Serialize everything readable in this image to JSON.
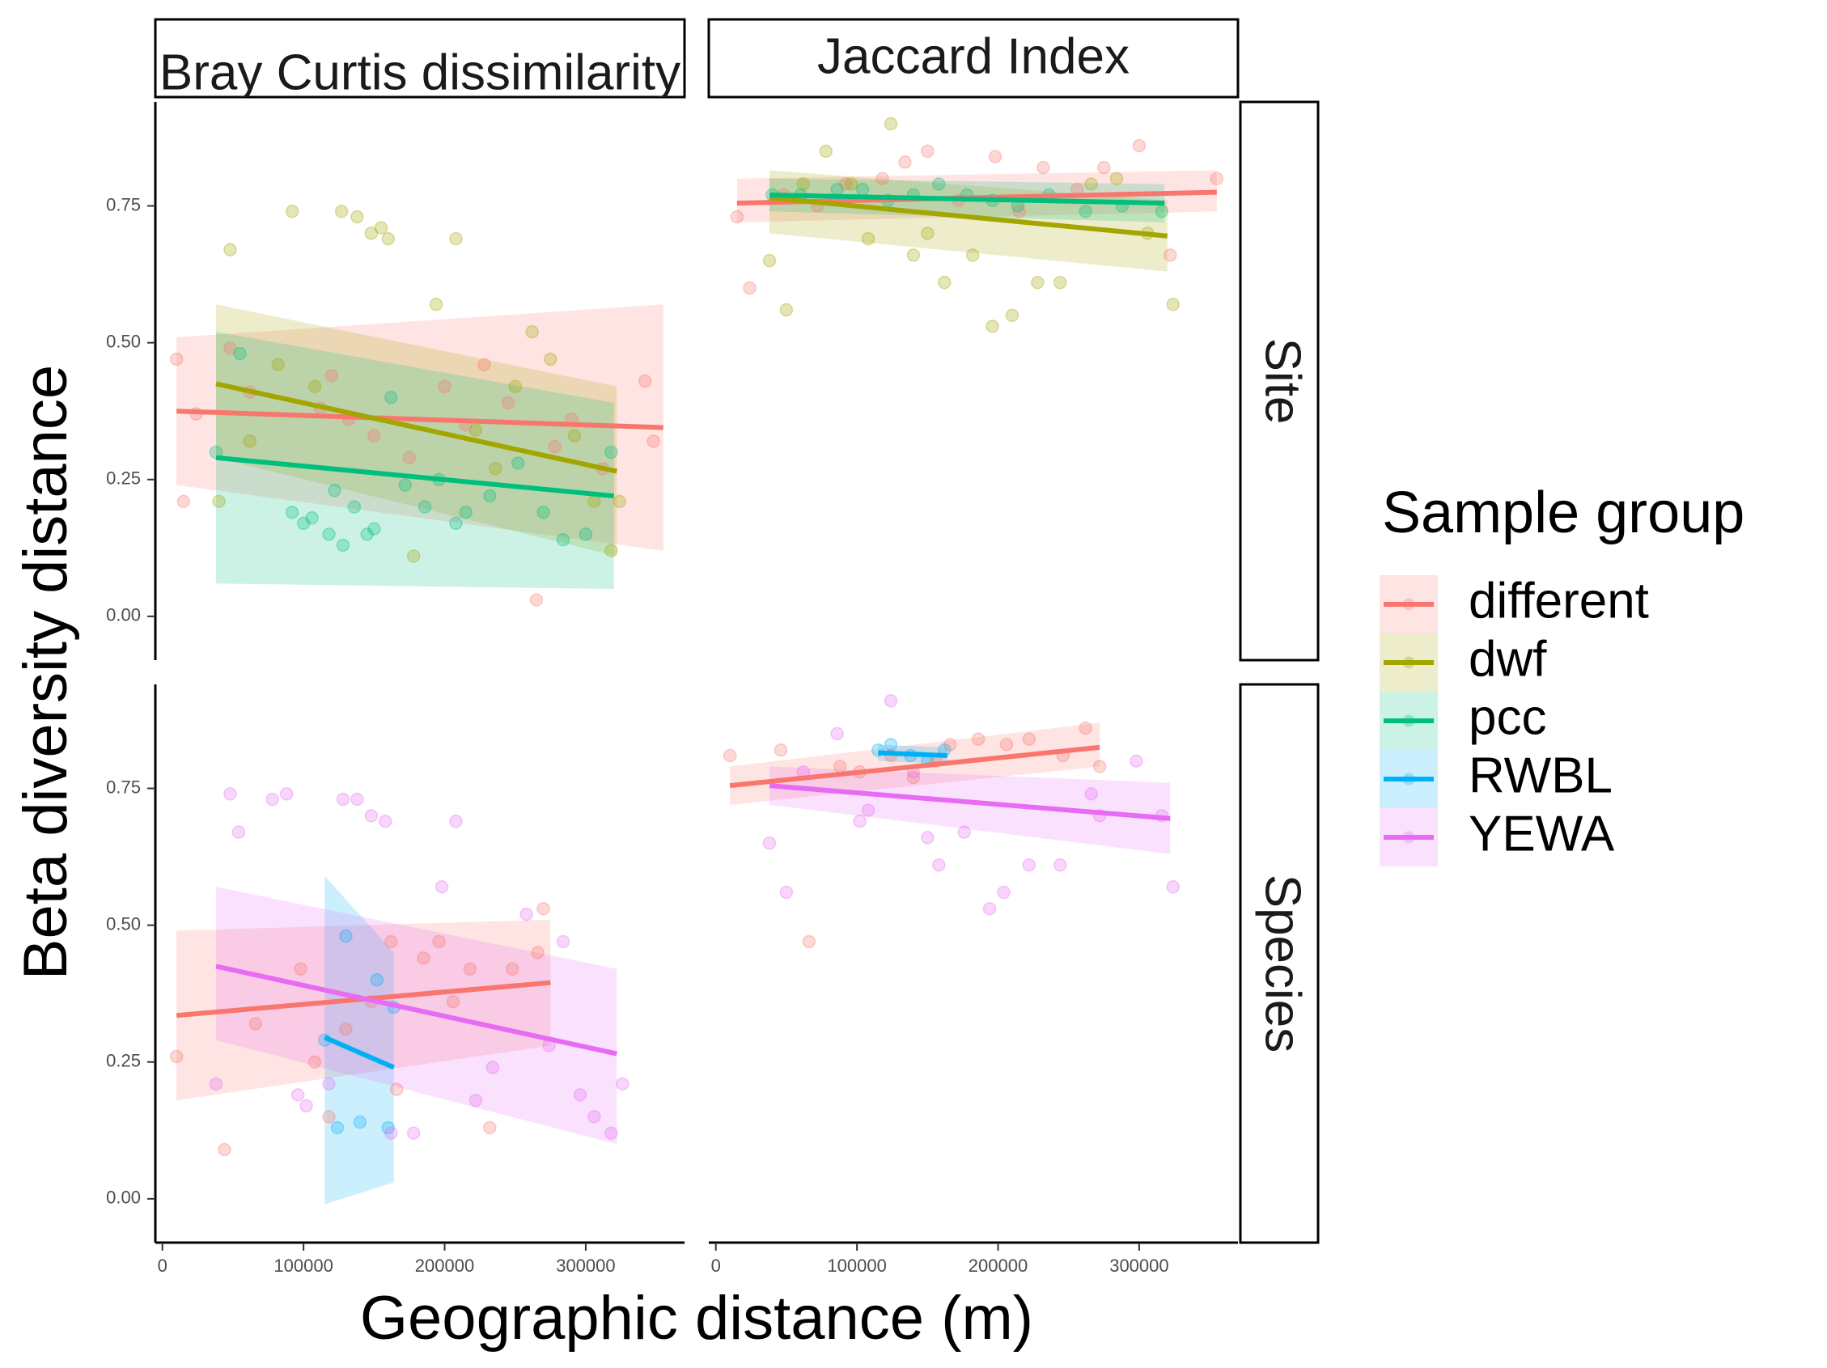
{
  "chart_data": {
    "type": "scatter",
    "facet_columns": [
      "Bray Curtis dissimilarity",
      "Jaccard Index"
    ],
    "facet_rows": [
      "Site",
      "Species"
    ],
    "xlabel": "Geographic distance (m)",
    "ylabel": "Beta diversity distance",
    "xlim": [
      -5000,
      370000
    ],
    "ylim": [
      -0.08,
      0.94
    ],
    "x_ticks": [
      0,
      100000,
      200000,
      300000
    ],
    "y_ticks": [
      0.0,
      0.25,
      0.5,
      0.75
    ],
    "x_tick_labels": [
      "0",
      "100000",
      "200000",
      "300000"
    ],
    "y_tick_labels": [
      "0.00",
      "0.25",
      "0.50",
      "0.75"
    ],
    "legend": {
      "title": "Sample group",
      "position": "right",
      "entries": [
        "different",
        "dwf",
        "pcc",
        "RWBL",
        "YEWA"
      ]
    },
    "colors": {
      "different": "#F8766D",
      "dwf": "#A3A500",
      "pcc": "#00BF7D",
      "RWBL": "#00B0F6",
      "YEWA": "#E76BF3"
    },
    "panels": [
      {
        "col": 0,
        "row": 0,
        "fits": [
          {
            "group": "different",
            "x": [
              10000,
              355000
            ],
            "y": [
              0.375,
              0.345
            ],
            "ci_lo": [
              0.24,
              0.12
            ],
            "ci_hi": [
              0.51,
              0.57
            ]
          },
          {
            "group": "dwf",
            "x": [
              38000,
              322000
            ],
            "y": [
              0.425,
              0.265
            ],
            "ci_lo": [
              0.29,
              0.11
            ],
            "ci_hi": [
              0.57,
              0.42
            ]
          },
          {
            "group": "pcc",
            "x": [
              38000,
              320000
            ],
            "y": [
              0.29,
              0.22
            ],
            "ci_lo": [
              0.06,
              0.05
            ],
            "ci_hi": [
              0.52,
              0.39
            ]
          }
        ],
        "points": [
          {
            "group": "different",
            "x": [
              10000,
              15000,
              24000,
              48000,
              62000,
              112000,
              120000,
              132000,
              150000,
              175000,
              200000,
              215000,
              228000,
              245000,
              265000,
              278000,
              290000,
              312000,
              342000,
              348000
            ],
            "y": [
              0.47,
              0.21,
              0.37,
              0.49,
              0.41,
              0.38,
              0.44,
              0.36,
              0.33,
              0.29,
              0.42,
              0.35,
              0.46,
              0.39,
              0.03,
              0.31,
              0.36,
              0.27,
              0.43,
              0.32
            ]
          },
          {
            "group": "dwf",
            "x": [
              40000,
              48000,
              62000,
              82000,
              92000,
              108000,
              127000,
              138000,
              148000,
              155000,
              160000,
              178000,
              194000,
              208000,
              222000,
              236000,
              250000,
              262000,
              275000,
              292000,
              306000,
              318000,
              324000
            ],
            "y": [
              0.21,
              0.67,
              0.32,
              0.46,
              0.74,
              0.42,
              0.74,
              0.73,
              0.7,
              0.71,
              0.69,
              0.11,
              0.57,
              0.69,
              0.34,
              0.27,
              0.42,
              0.52,
              0.47,
              0.33,
              0.21,
              0.12,
              0.21
            ]
          },
          {
            "group": "pcc",
            "x": [
              38000,
              55000,
              92000,
              100000,
              106000,
              118000,
              122000,
              128000,
              136000,
              145000,
              150000,
              162000,
              172000,
              186000,
              196000,
              208000,
              215000,
              232000,
              252000,
              270000,
              284000,
              300000,
              318000
            ],
            "y": [
              0.3,
              0.48,
              0.19,
              0.17,
              0.18,
              0.15,
              0.23,
              0.13,
              0.2,
              0.15,
              0.16,
              0.4,
              0.24,
              0.2,
              0.25,
              0.17,
              0.19,
              0.22,
              0.28,
              0.19,
              0.14,
              0.15,
              0.3
            ]
          }
        ]
      },
      {
        "col": 1,
        "row": 0,
        "fits": [
          {
            "group": "different",
            "x": [
              15000,
              355000
            ],
            "y": [
              0.755,
              0.775
            ],
            "ci_lo": [
              0.72,
              0.74
            ],
            "ci_hi": [
              0.8,
              0.815
            ]
          },
          {
            "group": "dwf",
            "x": [
              38000,
              320000
            ],
            "y": [
              0.765,
              0.695
            ],
            "ci_lo": [
              0.7,
              0.63
            ],
            "ci_hi": [
              0.815,
              0.76
            ]
          },
          {
            "group": "pcc",
            "x": [
              38000,
              318000
            ],
            "y": [
              0.77,
              0.755
            ],
            "ci_lo": [
              0.74,
              0.72
            ],
            "ci_hi": [
              0.8,
              0.79
            ]
          }
        ],
        "points": [
          {
            "group": "different",
            "x": [
              15000,
              24000,
              48000,
              72000,
              92000,
              118000,
              134000,
              150000,
              172000,
              198000,
              215000,
              232000,
              256000,
              275000,
              300000,
              322000,
              355000
            ],
            "y": [
              0.73,
              0.6,
              0.77,
              0.75,
              0.79,
              0.8,
              0.83,
              0.85,
              0.76,
              0.84,
              0.74,
              0.82,
              0.78,
              0.82,
              0.86,
              0.66,
              0.8
            ]
          },
          {
            "group": "dwf",
            "x": [
              38000,
              50000,
              62000,
              78000,
              96000,
              108000,
              124000,
              140000,
              150000,
              162000,
              182000,
              196000,
              210000,
              228000,
              244000,
              266000,
              284000,
              306000,
              324000
            ],
            "y": [
              0.65,
              0.56,
              0.79,
              0.85,
              0.79,
              0.69,
              0.9,
              0.66,
              0.7,
              0.61,
              0.66,
              0.53,
              0.55,
              0.61,
              0.61,
              0.79,
              0.8,
              0.7,
              0.57
            ]
          },
          {
            "group": "pcc",
            "x": [
              40000,
              60000,
              86000,
              104000,
              122000,
              140000,
              158000,
              178000,
              196000,
              214000,
              236000,
              262000,
              288000,
              316000
            ],
            "y": [
              0.77,
              0.77,
              0.78,
              0.78,
              0.76,
              0.77,
              0.79,
              0.77,
              0.76,
              0.75,
              0.77,
              0.74,
              0.75,
              0.74
            ]
          }
        ]
      },
      {
        "col": 0,
        "row": 1,
        "fits": [
          {
            "group": "different",
            "x": [
              10000,
              275000
            ],
            "y": [
              0.335,
              0.395
            ],
            "ci_lo": [
              0.18,
              0.28
            ],
            "ci_hi": [
              0.49,
              0.51
            ]
          },
          {
            "group": "RWBL",
            "x": [
              115000,
              164000
            ],
            "y": [
              0.295,
              0.24
            ],
            "ci_lo": [
              -0.01,
              0.03
            ],
            "ci_hi": [
              0.59,
              0.45
            ]
          },
          {
            "group": "YEWA",
            "x": [
              38000,
              322000
            ],
            "y": [
              0.425,
              0.265
            ],
            "ci_lo": [
              0.29,
              0.1
            ],
            "ci_hi": [
              0.57,
              0.42
            ]
          }
        ],
        "points": [
          {
            "group": "different",
            "x": [
              10000,
              44000,
              66000,
              98000,
              108000,
              118000,
              130000,
              148000,
              162000,
              166000,
              185000,
              196000,
              206000,
              218000,
              232000,
              248000,
              266000,
              270000
            ],
            "y": [
              0.26,
              0.09,
              0.32,
              0.42,
              0.25,
              0.15,
              0.31,
              0.36,
              0.47,
              0.2,
              0.44,
              0.47,
              0.36,
              0.42,
              0.13,
              0.42,
              0.45,
              0.53
            ]
          },
          {
            "group": "RWBL",
            "x": [
              115000,
              124000,
              130000,
              140000,
              152000,
              160000,
              164000
            ],
            "y": [
              0.29,
              0.13,
              0.48,
              0.14,
              0.4,
              0.13,
              0.35
            ]
          },
          {
            "group": "YEWA",
            "x": [
              38000,
              48000,
              54000,
              78000,
              88000,
              96000,
              102000,
              118000,
              128000,
              138000,
              148000,
              158000,
              162000,
              178000,
              198000,
              208000,
              222000,
              234000,
              258000,
              274000,
              284000,
              296000,
              306000,
              318000,
              326000
            ],
            "y": [
              0.21,
              0.74,
              0.67,
              0.73,
              0.74,
              0.19,
              0.17,
              0.21,
              0.73,
              0.73,
              0.7,
              0.69,
              0.12,
              0.12,
              0.57,
              0.69,
              0.18,
              0.24,
              0.52,
              0.28,
              0.47,
              0.19,
              0.15,
              0.12,
              0.21
            ]
          }
        ]
      },
      {
        "col": 1,
        "row": 1,
        "fits": [
          {
            "group": "different",
            "x": [
              10000,
              272000
            ],
            "y": [
              0.755,
              0.825
            ],
            "ci_lo": [
              0.72,
              0.79
            ],
            "ci_hi": [
              0.79,
              0.87
            ]
          },
          {
            "group": "RWBL",
            "x": [
              115000,
              164000
            ],
            "y": [
              0.815,
              0.81
            ],
            "ci_lo": [
              0.8,
              0.795
            ],
            "ci_hi": [
              0.83,
              0.825
            ]
          },
          {
            "group": "YEWA",
            "x": [
              38000,
              322000
            ],
            "y": [
              0.755,
              0.695
            ],
            "ci_lo": [
              0.72,
              0.63
            ],
            "ci_hi": [
              0.79,
              0.76
            ]
          }
        ],
        "points": [
          {
            "group": "different",
            "x": [
              10000,
              46000,
              66000,
              88000,
              102000,
              124000,
              140000,
              156000,
              166000,
              186000,
              206000,
              222000,
              246000,
              262000,
              272000
            ],
            "y": [
              0.81,
              0.82,
              0.47,
              0.79,
              0.78,
              0.81,
              0.77,
              0.8,
              0.83,
              0.84,
              0.83,
              0.84,
              0.81,
              0.86,
              0.79
            ]
          },
          {
            "group": "RWBL",
            "x": [
              115000,
              124000,
              138000,
              150000,
              162000
            ],
            "y": [
              0.82,
              0.83,
              0.81,
              0.8,
              0.82
            ]
          },
          {
            "group": "YEWA",
            "x": [
              38000,
              50000,
              62000,
              86000,
              102000,
              108000,
              124000,
              140000,
              150000,
              158000,
              176000,
              194000,
              204000,
              222000,
              244000,
              266000,
              272000,
              298000,
              316000,
              324000
            ],
            "y": [
              0.65,
              0.56,
              0.78,
              0.85,
              0.69,
              0.71,
              0.91,
              0.78,
              0.66,
              0.61,
              0.67,
              0.53,
              0.56,
              0.61,
              0.61,
              0.74,
              0.7,
              0.8,
              0.7,
              0.57
            ]
          }
        ]
      }
    ]
  }
}
